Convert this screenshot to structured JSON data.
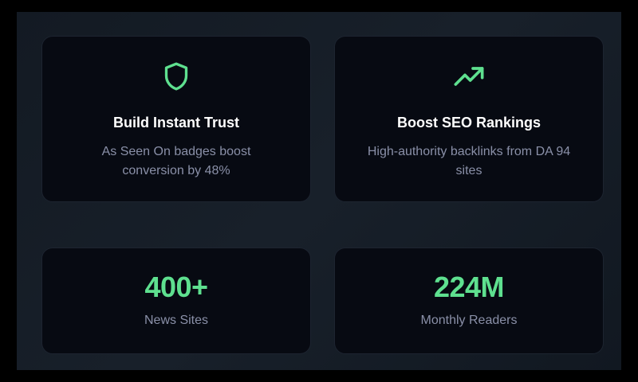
{
  "accent_color": "#5ee08f",
  "features": [
    {
      "icon": "shield-icon",
      "title": "Build Instant Trust",
      "description": "As Seen On badges boost conversion by 48%"
    },
    {
      "icon": "trending-up-icon",
      "title": "Boost SEO Rankings",
      "description": "High-authority backlinks from DA 94 sites"
    }
  ],
  "stats": [
    {
      "value": "400+",
      "label": "News Sites"
    },
    {
      "value": "224M",
      "label": "Monthly Readers"
    }
  ]
}
